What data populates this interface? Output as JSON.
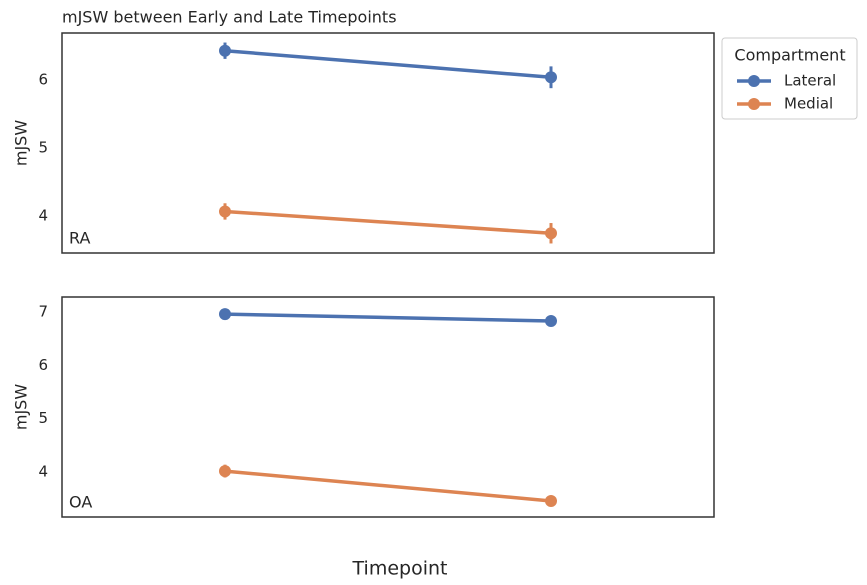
{
  "chart_data": [
    {
      "type": "line",
      "title": "mJSW between Early and Late Timepoints",
      "ylabel": "mJSW",
      "label": "RA",
      "categories": [
        null,
        null
      ],
      "series": [
        {
          "name": "Lateral",
          "color": "#4c72b0",
          "values": [
            6.43,
            6.04
          ],
          "errors": [
            0.12,
            0.16
          ]
        },
        {
          "name": "Medial",
          "color": "#dd8452",
          "values": [
            4.07,
            3.75
          ],
          "errors": [
            0.12,
            0.15
          ]
        }
      ],
      "ylim": [
        3.46,
        6.69
      ],
      "yticks": [
        4,
        5,
        6
      ],
      "grid": false,
      "legend_title": "Compartment",
      "legend": "outside upper right"
    },
    {
      "type": "line",
      "ylabel": "mJSW",
      "label": "OA",
      "xlabel": "Timepoint",
      "categories": [
        null,
        null
      ],
      "series": [
        {
          "name": "Lateral",
          "color": "#4c72b0",
          "values": [
            6.96,
            6.83
          ],
          "errors": [
            0.1,
            0.1
          ]
        },
        {
          "name": "Medial",
          "color": "#dd8452",
          "values": [
            4.02,
            3.46
          ],
          "errors": [
            0.12,
            0.1
          ]
        }
      ],
      "ylim": [
        3.16,
        7.28
      ],
      "yticks": [
        4,
        5,
        6,
        7
      ],
      "grid": false
    }
  ]
}
